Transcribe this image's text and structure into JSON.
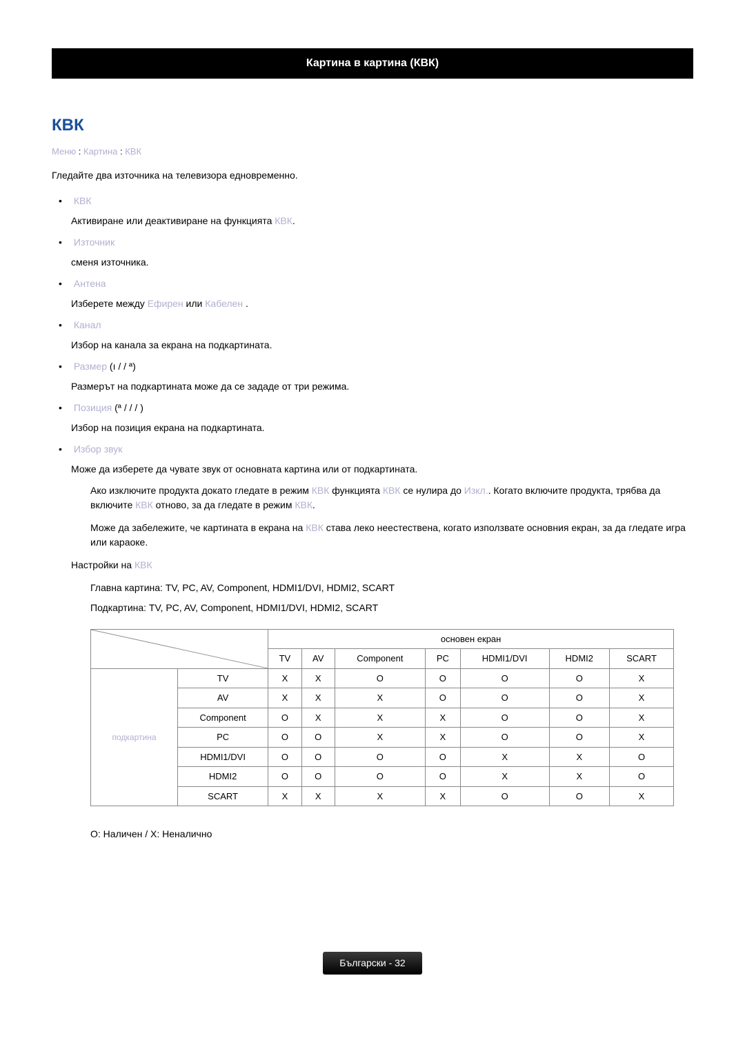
{
  "banner": "Картина в картина (КВК)",
  "title": "КВК",
  "breadcrumb": {
    "a": "Меню",
    "b": "Картина",
    "c": "КВК",
    "sep": " : "
  },
  "intro": "Гледайте два източника на телевизора едновременно.",
  "items": [
    {
      "title": "КВК",
      "desc_pre": "Активиране или деактивиране на функцията ",
      "desc_accent": "КВК",
      "desc_post": "."
    },
    {
      "title": "Източник",
      "desc_pre": "сменя източника.",
      "desc_accent": "",
      "desc_post": ""
    },
    {
      "title": "Антена",
      "desc_pre": "Изберете между ",
      "desc_accent": "Ефирен",
      "desc_mid": " или ",
      "desc_accent2": "Кабелен",
      "desc_post": " ."
    },
    {
      "title": "Канал",
      "desc_pre": "Избор на канала за екрана на подкартината.",
      "desc_accent": "",
      "desc_post": ""
    },
    {
      "title": "Размер",
      "title_suffix": " (ı /   / ª)",
      "desc_pre": "Размерът на подкартината може да се зададе от три режима.",
      "desc_accent": "",
      "desc_post": ""
    },
    {
      "title": "Позиция",
      "title_suffix": " (ª /   /   /  )",
      "desc_pre": "Избор на позиция екрана на подкартината.",
      "desc_accent": "",
      "desc_post": ""
    },
    {
      "title": "Избор звук",
      "desc_pre": "Може да изберете да чувате звук от основната картина или от подкартината.",
      "desc_accent": "",
      "desc_post": ""
    }
  ],
  "note1": {
    "p1": "Ако изключите продукта докато гледате в режим ",
    "a1": "КВК",
    "p2": " функцията ",
    "a2": "КВК",
    "p3": " се нулира до ",
    "a3": "Изкл.",
    "p4": ". Когато включите продукта, трябва да включите ",
    "a4": "КВК",
    "p5": " отново, за да гледате в режим ",
    "a5": "КВК",
    "p6": "."
  },
  "note2": {
    "p1": "Може да забележите, че картината в екрана на ",
    "a1": "КВК",
    "p2": " става леко неестествена, когато използвате основния екран, за да гледате игра или караоке."
  },
  "settings_label_pre": "Настройки на ",
  "settings_label_accent": "КВК",
  "main_picture": "Главна картина: TV, PC, AV, Component, HDMI1/DVI, HDMI2, SCART",
  "sub_picture": "Подкартина: TV, PC, AV, Component, HDMI1/DVI, HDMI2, SCART",
  "table": {
    "col_group_label": "основен екран",
    "row_group_label": "подкартина",
    "columns": [
      "TV",
      "AV",
      "Component",
      "PC",
      "HDMI1/DVI",
      "HDMI2",
      "SCART"
    ],
    "rows": [
      "TV",
      "AV",
      "Component",
      "PC",
      "HDMI1/DVI",
      "HDMI2",
      "SCART"
    ],
    "cells": [
      [
        "X",
        "X",
        "O",
        "O",
        "O",
        "O",
        "X"
      ],
      [
        "X",
        "X",
        "X",
        "O",
        "O",
        "O",
        "X"
      ],
      [
        "O",
        "X",
        "X",
        "X",
        "O",
        "O",
        "X"
      ],
      [
        "O",
        "O",
        "X",
        "X",
        "O",
        "O",
        "X"
      ],
      [
        "O",
        "O",
        "O",
        "O",
        "X",
        "X",
        "O"
      ],
      [
        "O",
        "O",
        "O",
        "O",
        "X",
        "X",
        "O"
      ],
      [
        "X",
        "X",
        "X",
        "X",
        "O",
        "O",
        "X"
      ]
    ]
  },
  "legend": "O: Наличен / X: Неналично",
  "footer_lang": "Български - ",
  "footer_page": "32"
}
